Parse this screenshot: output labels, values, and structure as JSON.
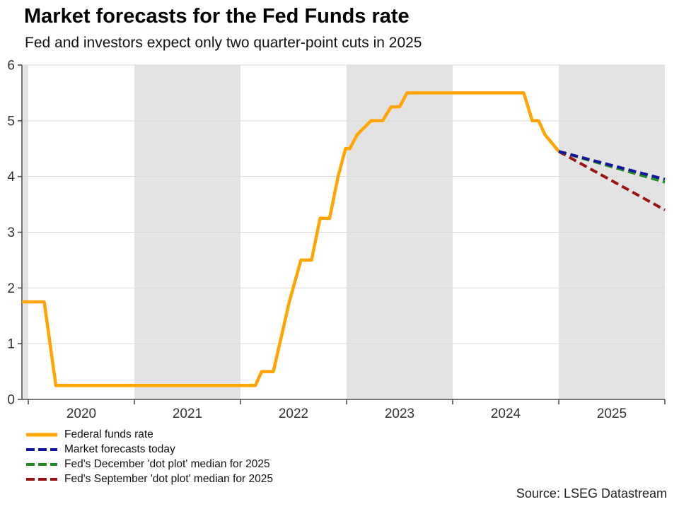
{
  "header": {
    "title": "Market forecasts for the Fed Funds rate",
    "subtitle": "Fed and investors expect only two quarter-point cuts in 2025"
  },
  "source": "Source: LSEG Datastream",
  "colors": {
    "federal_funds": "#FFA400",
    "market_forecast": "#14149E",
    "december_dot_plot": "#1E8C1E",
    "september_dot_plot": "#9A1414",
    "year_band": "#E3E3E3",
    "gridline": "#D9D9D9",
    "axis": "#4D4D4D",
    "tick_text": "#333333"
  },
  "chart_data": {
    "type": "line",
    "title": "Market forecasts for the Fed Funds rate",
    "subtitle": "Fed and investors expect only two quarter-point cuts in 2025",
    "grid": "horizontal",
    "legend_position": "bottom-left",
    "x_axis": {
      "range": [
        2019.94,
        2026
      ],
      "tick_labels": [
        "2020",
        "2021",
        "2022",
        "2023",
        "2024",
        "2025"
      ],
      "tick_label_years": [
        2020,
        2021,
        2022,
        2023,
        2024,
        2025
      ],
      "shaded_years": [
        2019,
        2021,
        2023,
        2025
      ]
    },
    "y_axis": {
      "range": [
        0,
        6
      ],
      "ticks": [
        0,
        1,
        2,
        3,
        4,
        5,
        6
      ]
    },
    "series": [
      {
        "name": "Federal funds rate",
        "color_key": "federal_funds",
        "dash": false,
        "points": [
          [
            2019.94,
            1.75
          ],
          [
            2020.15,
            1.75
          ],
          [
            2020.26,
            0.25
          ],
          [
            2022.14,
            0.25
          ],
          [
            2022.2,
            0.5
          ],
          [
            2022.31,
            0.5
          ],
          [
            2022.37,
            1.0
          ],
          [
            2022.46,
            1.75
          ],
          [
            2022.57,
            2.5
          ],
          [
            2022.67,
            2.5
          ],
          [
            2022.75,
            3.25
          ],
          [
            2022.84,
            3.25
          ],
          [
            2022.92,
            4.0
          ],
          [
            2022.99,
            4.5
          ],
          [
            2023.03,
            4.5
          ],
          [
            2023.1,
            4.75
          ],
          [
            2023.23,
            5.0
          ],
          [
            2023.34,
            5.0
          ],
          [
            2023.42,
            5.25
          ],
          [
            2023.5,
            5.25
          ],
          [
            2023.57,
            5.5
          ],
          [
            2024.67,
            5.5
          ],
          [
            2024.75,
            5.0
          ],
          [
            2024.81,
            5.0
          ],
          [
            2024.87,
            4.75
          ],
          [
            2025.0,
            4.45
          ]
        ]
      },
      {
        "name": "Market forecasts today",
        "color_key": "market_forecast",
        "dash": true,
        "points": [
          [
            2025.0,
            4.45
          ],
          [
            2026.0,
            3.95
          ]
        ]
      },
      {
        "name": "Fed's December 'dot plot' median for 2025",
        "color_key": "december_dot_plot",
        "dash": true,
        "points": [
          [
            2025.0,
            4.45
          ],
          [
            2026.0,
            3.9
          ]
        ]
      },
      {
        "name": "Fed's September 'dot plot' median for 2025",
        "color_key": "september_dot_plot",
        "dash": true,
        "points": [
          [
            2025.0,
            4.45
          ],
          [
            2026.0,
            3.4
          ]
        ]
      }
    ],
    "draw_order": [
      0,
      3,
      2,
      1
    ]
  }
}
